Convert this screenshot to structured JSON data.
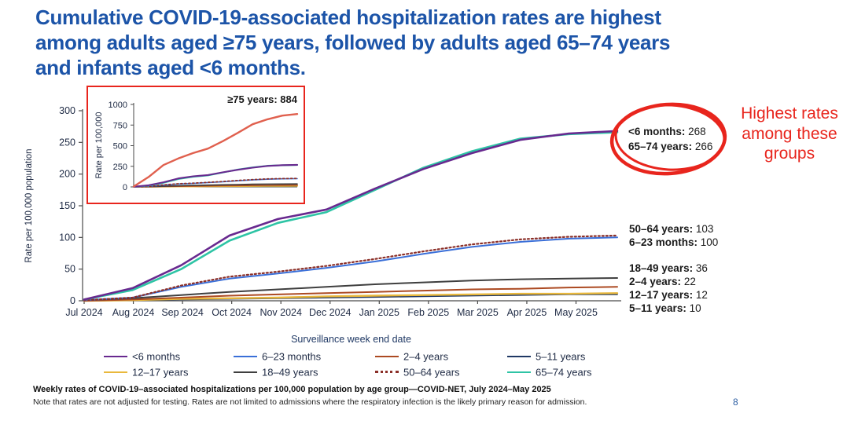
{
  "slide": {
    "title": "Cumulative COVID-19-associated hospitalization rates are highest\namong adults aged ≥75 years, followed by adults aged 65–74 years\nand infants aged <6 months.",
    "page_number": "8",
    "footer_bold": "Weekly rates of COVID-19–associated hospitalizations per 100,000 population by age group—COVID-NET, July 2024–May 2025",
    "footer_note": "Note that rates are not adjusted for testing. Rates are not limited to admissions where the respiratory infection is the likely primary reason for admission."
  },
  "colors": {
    "title_blue": "#1C54A8",
    "red_accent": "#E8251D",
    "axis_text": "#1E2A44",
    "axis_line": "#4a4a4a",
    "page_number_blue": "#2E5FA3",
    "value_label_text": "#1a1a1a"
  },
  "annotations": {
    "highlight_text": "Highest rates\namong these\ngroups",
    "circled": [
      {
        "label": "<6 months:",
        "value": "268"
      },
      {
        "label": "65–74 years:",
        "value": "266"
      }
    ],
    "right_labels": [
      {
        "label": "50–64 years:",
        "value": "103"
      },
      {
        "label": "6–23 months:",
        "value": "100"
      },
      {
        "label": "18–49 years:",
        "value": "36"
      },
      {
        "label": "2–4 years:",
        "value": "22"
      },
      {
        "label": "12–17 years:",
        "value": "12"
      },
      {
        "label": "5–11 years:",
        "value": "10"
      }
    ]
  },
  "chart_data": {
    "type": "line",
    "title": "",
    "xlabel": "Surveillance week end date",
    "ylabel": "Rate per 100,000 population",
    "x_ticks": [
      "Jul 2024",
      "Aug 2024",
      "Sep 2024",
      "Oct 2024",
      "Nov 2024",
      "Dec 2024",
      "Jan 2025",
      "Feb 2025",
      "Mar 2025",
      "Apr 2025",
      "May 2025"
    ],
    "y_ticks": [
      0,
      50,
      100,
      150,
      200,
      250,
      300
    ],
    "ylim": [
      0,
      300
    ],
    "grid": false,
    "legend_position": "bottom",
    "series": [
      {
        "name": "<6 months",
        "color": "#68298F",
        "style": "solid",
        "width": 2.6,
        "values": [
          2,
          20,
          56,
          103,
          129,
          144,
          177,
          208,
          233,
          254,
          264,
          268
        ]
      },
      {
        "name": "6–23 months",
        "color": "#3A6FD8",
        "style": "solid",
        "width": 2.0,
        "values": [
          1,
          5,
          22,
          35,
          43,
          52,
          62,
          74,
          85,
          93,
          98,
          100
        ]
      },
      {
        "name": "2–4 years",
        "color": "#AC4A22",
        "style": "solid",
        "width": 2.0,
        "values": [
          0,
          2,
          5,
          8,
          10,
          12,
          14,
          16,
          18,
          19,
          21,
          22
        ]
      },
      {
        "name": "5–11 years",
        "color": "#1F3864",
        "style": "solid",
        "width": 1.8,
        "values": [
          0,
          1,
          2,
          3,
          4,
          5,
          6,
          7,
          8,
          9,
          10,
          10
        ]
      },
      {
        "name": "12–17 years",
        "color": "#E9B83C",
        "style": "solid",
        "width": 2.4,
        "values": [
          0,
          1,
          3,
          4,
          5,
          7,
          8,
          9,
          10,
          11,
          11,
          12
        ]
      },
      {
        "name": "18–49 years",
        "color": "#3F3F3F",
        "style": "solid",
        "width": 2.0,
        "values": [
          1,
          4,
          9,
          14,
          18,
          22,
          26,
          29,
          32,
          34,
          35,
          36
        ]
      },
      {
        "name": "50–64 years",
        "color": "#8B2F28",
        "style": "dotted",
        "width": 2.2,
        "values": [
          1,
          5,
          24,
          38,
          46,
          55,
          66,
          78,
          89,
          97,
          101,
          103
        ]
      },
      {
        "name": "65–74 years",
        "color": "#2EC4A5",
        "style": "solid",
        "width": 2.6,
        "values": [
          2,
          17,
          50,
          95,
          123,
          140,
          175,
          210,
          236,
          256,
          263,
          266
        ]
      }
    ],
    "inset": {
      "ylabel": "Rate per 100,000",
      "y_ticks": [
        0,
        250,
        500,
        750,
        1000
      ],
      "ylim": [
        0,
        1000
      ],
      "label": "≥75 years: 884",
      "extra_series": [
        {
          "name": "≥75 years",
          "color": "#E0604E",
          "style": "solid",
          "width": 3.0,
          "values": [
            5,
            120,
            265,
            345,
            410,
            465,
            555,
            655,
            760,
            820,
            865,
            884
          ]
        }
      ]
    }
  }
}
